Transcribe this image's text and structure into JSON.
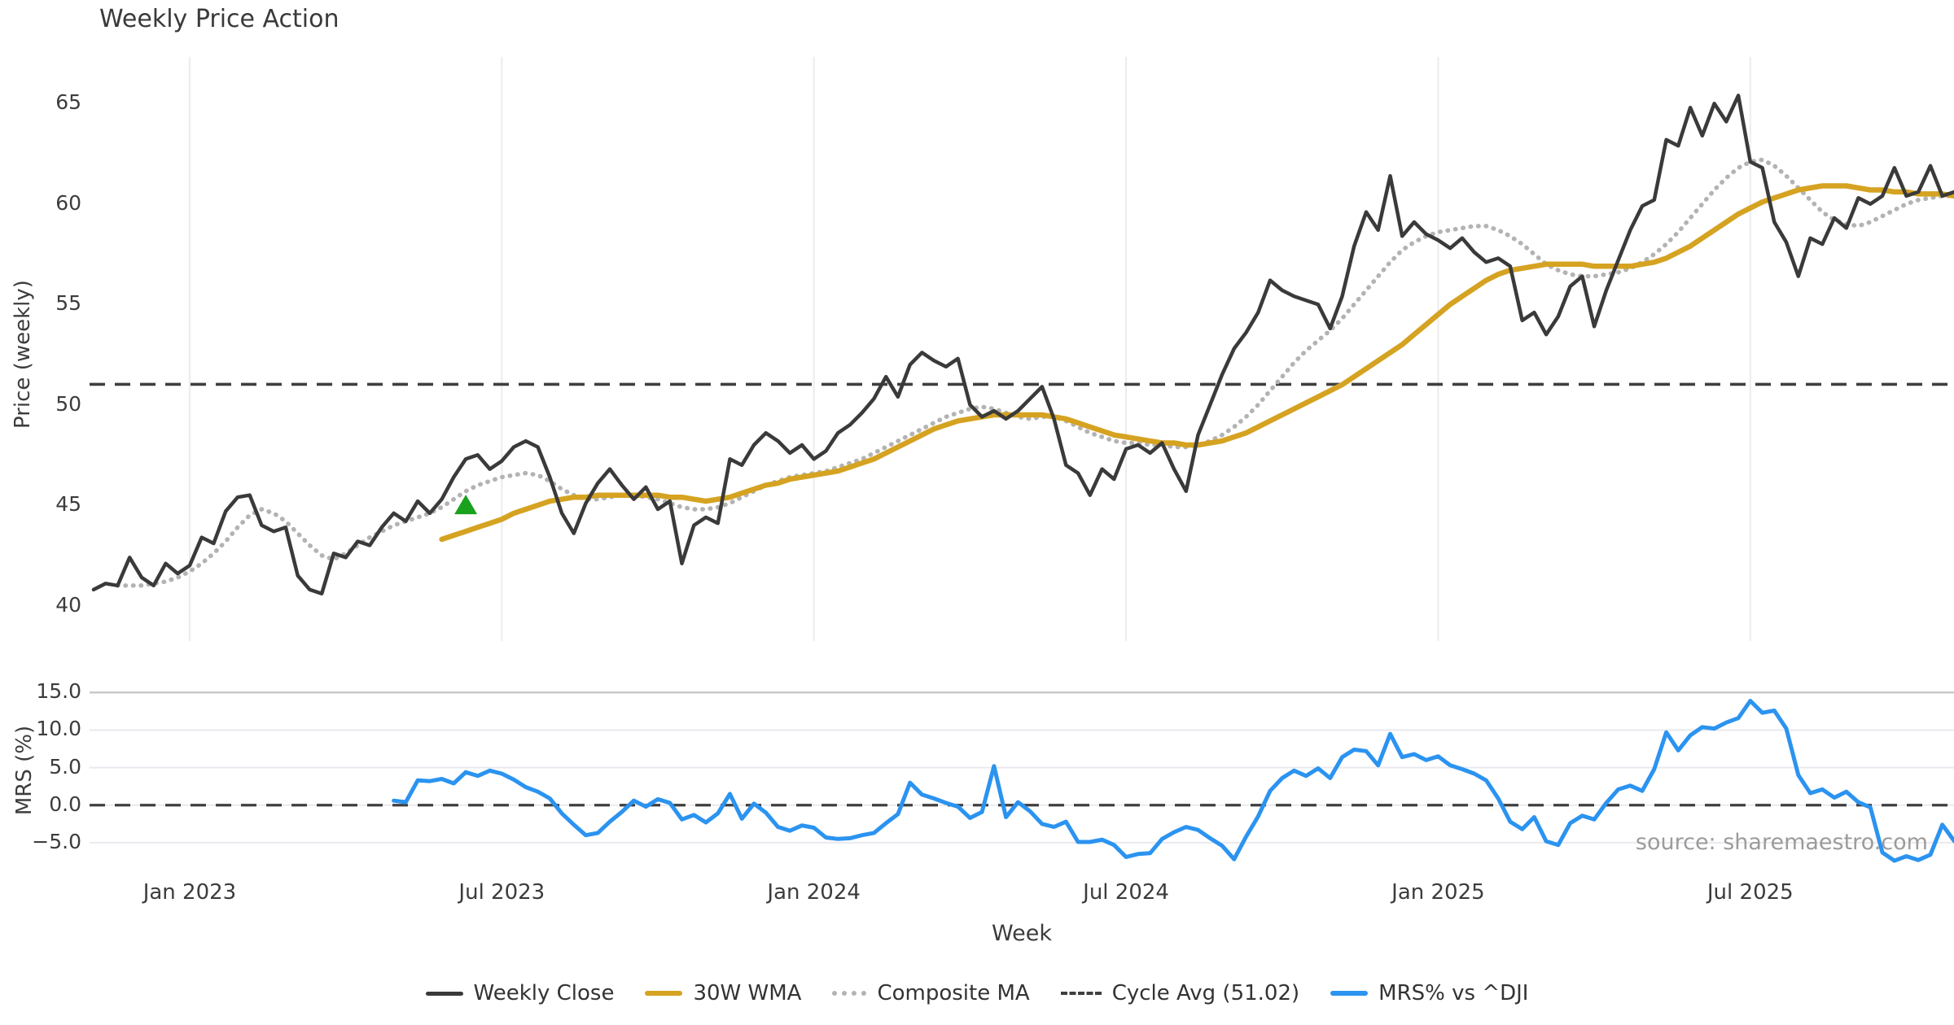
{
  "title": "Weekly Price Action",
  "xlabel": "Week",
  "source_note": "source: sharemaestro.com",
  "colors": {
    "weekly_close": "#3a3a3a",
    "wma30": "#d5a321",
    "composite_ma": "#b3b3b3",
    "cycle_avg_dash": "#3f3f3f",
    "mrs_line": "#2b93f0",
    "marker_green": "#18a21d",
    "grid_vertical": "#ececec",
    "grid_horizontal": "#e9e9ef",
    "grid_horizontal_top": "#c9c9c9",
    "background": "#ffffff"
  },
  "legend": [
    {
      "label": "Weekly Close",
      "color": "#3a3a3a",
      "style": "solid"
    },
    {
      "label": "30W WMA",
      "color": "#d5a321",
      "style": "solid-thick"
    },
    {
      "label": "Composite MA",
      "color": "#b3b3b3",
      "style": "dotted"
    },
    {
      "label": "Cycle Avg (51.02)",
      "color": "#3f3f3f",
      "style": "dashed"
    },
    {
      "label": "MRS% vs ^DJI",
      "color": "#2b93f0",
      "style": "solid-thick"
    }
  ],
  "chart_data": {
    "type": "line",
    "title": "Weekly Price Action",
    "xlabel": "Week",
    "start_date": "2022-11-07",
    "interval_days": 7,
    "n_points": 156,
    "x_ticks": [
      {
        "label": "Jan 2023",
        "index": 8
      },
      {
        "label": "Jul 2023",
        "index": 34
      },
      {
        "label": "Jan 2024",
        "index": 60
      },
      {
        "label": "Jul 2024",
        "index": 86
      },
      {
        "label": "Jan 2025",
        "index": 112
      },
      {
        "label": "Jul 2025",
        "index": 138
      }
    ],
    "panels": [
      {
        "id": "price",
        "ylabel": "Price (weekly)",
        "ylim": [
          38.4,
          67.2
        ],
        "grid": "vertical-only",
        "yticks": [
          {
            "label": "65",
            "value": 65
          },
          {
            "label": "60",
            "value": 60
          },
          {
            "label": "55",
            "value": 55
          },
          {
            "label": "50",
            "value": 50
          },
          {
            "label": "45",
            "value": 45
          },
          {
            "label": "40",
            "value": 40
          }
        ],
        "ref_line": {
          "name": "Cycle Avg (51.02)",
          "value": 51.02,
          "style": "dashed",
          "color": "#3f3f3f"
        },
        "markers": [
          {
            "index": 31,
            "value": 45.0,
            "shape": "triangle-up",
            "color": "#18a21d"
          }
        ],
        "series": [
          {
            "name": "Weekly Close",
            "color": "#3a3a3a",
            "style": "solid",
            "width": 4.5,
            "values": [
              40.8,
              41.1,
              41.0,
              42.4,
              41.4,
              41.0,
              42.1,
              41.6,
              42.0,
              43.4,
              43.1,
              44.7,
              45.4,
              45.5,
              44.0,
              43.7,
              43.9,
              41.5,
              40.8,
              40.6,
              42.6,
              42.4,
              43.2,
              43.0,
              43.9,
              44.6,
              44.2,
              45.2,
              44.6,
              45.3,
              46.4,
              47.3,
              47.5,
              46.8,
              47.2,
              47.9,
              48.2,
              47.9,
              46.4,
              44.6,
              43.6,
              45.1,
              46.1,
              46.8,
              46.0,
              45.3,
              45.9,
              44.8,
              45.2,
              42.1,
              44.0,
              44.4,
              44.1,
              47.3,
              47.0,
              48.0,
              48.6,
              48.2,
              47.6,
              48.0,
              47.3,
              47.7,
              48.6,
              49.0,
              49.6,
              50.3,
              51.4,
              50.4,
              52.0,
              52.6,
              52.2,
              51.9,
              52.3,
              50.0,
              49.4,
              49.7,
              49.3,
              49.7,
              50.3,
              50.9,
              49.3,
              47.0,
              46.6,
              45.5,
              46.8,
              46.3,
              47.8,
              48.0,
              47.6,
              48.1,
              46.8,
              45.7,
              48.5,
              50.0,
              51.5,
              52.8,
              53.6,
              54.6,
              56.2,
              55.7,
              55.4,
              55.2,
              55.0,
              53.8,
              55.4,
              57.9,
              59.6,
              58.7,
              61.4,
              58.4,
              59.1,
              58.5,
              58.2,
              57.8,
              58.3,
              57.6,
              57.1,
              57.3,
              56.9,
              54.2,
              54.6,
              53.5,
              54.4,
              55.9,
              56.4,
              53.9,
              55.7,
              57.2,
              58.7,
              59.9,
              60.2,
              63.2,
              62.9,
              64.8,
              63.4,
              65.0,
              64.1,
              65.4,
              62.1,
              61.8,
              59.1,
              58.1,
              56.4,
              58.3,
              58.0,
              59.3,
              58.8,
              60.3,
              60.0,
              60.4,
              61.8,
              60.4,
              60.6,
              61.9,
              60.4,
              60.6
            ]
          },
          {
            "name": "30W WMA",
            "color": "#d5a321",
            "style": "solid",
            "width": 6.5,
            "values": [
              null,
              null,
              null,
              null,
              null,
              null,
              null,
              null,
              null,
              null,
              null,
              null,
              null,
              null,
              null,
              null,
              null,
              null,
              null,
              null,
              null,
              null,
              null,
              null,
              null,
              null,
              null,
              null,
              null,
              43.3,
              43.5,
              43.7,
              43.9,
              44.1,
              44.3,
              44.6,
              44.8,
              45.0,
              45.2,
              45.3,
              45.4,
              45.4,
              45.5,
              45.5,
              45.5,
              45.5,
              45.5,
              45.5,
              45.4,
              45.4,
              45.3,
              45.2,
              45.3,
              45.4,
              45.6,
              45.8,
              46.0,
              46.1,
              46.3,
              46.4,
              46.5,
              46.6,
              46.7,
              46.9,
              47.1,
              47.3,
              47.6,
              47.9,
              48.2,
              48.5,
              48.8,
              49.0,
              49.2,
              49.3,
              49.4,
              49.5,
              49.5,
              49.5,
              49.5,
              49.5,
              49.4,
              49.3,
              49.1,
              48.9,
              48.7,
              48.5,
              48.4,
              48.3,
              48.2,
              48.1,
              48.1,
              48.0,
              48.0,
              48.1,
              48.2,
              48.4,
              48.6,
              48.9,
              49.2,
              49.5,
              49.8,
              50.1,
              50.4,
              50.7,
              51.0,
              51.4,
              51.8,
              52.2,
              52.6,
              53.0,
              53.5,
              54.0,
              54.5,
              55.0,
              55.4,
              55.8,
              56.2,
              56.5,
              56.7,
              56.8,
              56.9,
              57.0,
              57.0,
              57.0,
              57.0,
              56.9,
              56.9,
              56.9,
              56.9,
              57.0,
              57.1,
              57.3,
              57.6,
              57.9,
              58.3,
              58.7,
              59.1,
              59.5,
              59.8,
              60.1,
              60.3,
              60.5,
              60.7,
              60.8,
              60.9,
              60.9,
              60.9,
              60.8,
              60.7,
              60.7,
              60.6,
              60.6,
              60.5,
              60.5,
              60.5,
              60.4
            ]
          },
          {
            "name": "Composite MA",
            "color": "#b3b3b3",
            "style": "dotted",
            "width": 4,
            "values": [
              null,
              null,
              41.0,
              41.0,
              41.0,
              41.1,
              41.2,
              41.4,
              41.7,
              42.1,
              42.6,
              43.2,
              43.9,
              44.5,
              44.8,
              44.6,
              44.2,
              43.6,
              43.0,
              42.5,
              42.3,
              42.6,
              43.0,
              43.4,
              43.7,
              44.0,
              44.2,
              44.4,
              44.6,
              44.9,
              45.3,
              45.7,
              46.0,
              46.2,
              46.4,
              46.5,
              46.6,
              46.5,
              46.2,
              45.8,
              45.5,
              45.3,
              45.3,
              45.4,
              45.5,
              45.5,
              45.4,
              45.3,
              45.1,
              44.9,
              44.8,
              44.8,
              44.9,
              45.1,
              45.4,
              45.7,
              46.0,
              46.2,
              46.4,
              46.5,
              46.6,
              46.7,
              46.9,
              47.1,
              47.3,
              47.6,
              47.9,
              48.2,
              48.5,
              48.8,
              49.1,
              49.4,
              49.6,
              49.8,
              49.9,
              49.8,
              49.6,
              49.4,
              49.3,
              49.4,
              49.4,
              49.2,
              48.9,
              48.6,
              48.4,
              48.2,
              48.1,
              48.1,
              48.0,
              48.0,
              47.9,
              47.9,
              48.0,
              48.2,
              48.5,
              48.9,
              49.4,
              50.0,
              50.7,
              51.4,
              52.1,
              52.7,
              53.2,
              53.7,
              54.3,
              55.0,
              55.7,
              56.4,
              57.1,
              57.7,
              58.1,
              58.4,
              58.6,
              58.7,
              58.8,
              58.9,
              58.9,
              58.7,
              58.4,
              58.0,
              57.5,
              57.0,
              56.7,
              56.5,
              56.4,
              56.4,
              56.5,
              56.6,
              56.8,
              57.1,
              57.5,
              58.0,
              58.6,
              59.3,
              60.0,
              60.7,
              61.3,
              61.8,
              62.1,
              62.2,
              61.9,
              61.4,
              60.8,
              60.2,
              59.6,
              59.2,
              59.0,
              58.9,
              59.1,
              59.4,
              59.7,
              60.0,
              60.2,
              60.3,
              60.4,
              60.4
            ]
          }
        ]
      },
      {
        "id": "mrs",
        "ylabel": "MRS (%)",
        "ylim": [
          -8.8,
          17.2
        ],
        "grid": "horizontal-only",
        "yticks": [
          {
            "label": "15.0",
            "value": 15
          },
          {
            "label": "10.0",
            "value": 10
          },
          {
            "label": "5.0",
            "value": 5
          },
          {
            "label": "0.0",
            "value": 0
          },
          {
            "label": "−5.0",
            "value": -5
          }
        ],
        "ref_line": {
          "name": "zero",
          "value": 0.0,
          "style": "dashed",
          "color": "#3f3f3f"
        },
        "series": [
          {
            "name": "MRS% vs ^DJI",
            "color": "#2b93f0",
            "style": "solid",
            "width": 5,
            "values": [
              null,
              null,
              null,
              null,
              null,
              null,
              null,
              null,
              null,
              null,
              null,
              null,
              null,
              null,
              null,
              null,
              null,
              null,
              null,
              null,
              null,
              null,
              null,
              null,
              null,
              0.6,
              0.4,
              3.3,
              3.2,
              3.5,
              2.9,
              4.4,
              3.9,
              4.6,
              4.2,
              3.4,
              2.4,
              1.8,
              0.9,
              -1.1,
              -2.6,
              -4.0,
              -3.7,
              -2.2,
              -0.9,
              0.6,
              -0.2,
              0.8,
              0.3,
              -1.9,
              -1.3,
              -2.3,
              -1.1,
              1.5,
              -1.8,
              0.2,
              -1.0,
              -2.9,
              -3.4,
              -2.7,
              -3.0,
              -4.3,
              -4.5,
              -4.4,
              -4.0,
              -3.7,
              -2.4,
              -1.2,
              3.0,
              1.4,
              0.9,
              0.3,
              -0.2,
              -1.7,
              -0.9,
              5.2,
              -1.6,
              0.4,
              -0.8,
              -2.5,
              -2.9,
              -2.2,
              -4.9,
              -4.9,
              -4.6,
              -5.3,
              -6.9,
              -6.5,
              -6.4,
              -4.5,
              -3.6,
              -2.9,
              -3.3,
              -4.4,
              -5.4,
              -7.2,
              -4.2,
              -1.5,
              1.9,
              3.6,
              4.6,
              3.9,
              4.9,
              3.6,
              6.4,
              7.4,
              7.2,
              5.3,
              9.5,
              6.4,
              6.8,
              6.0,
              6.5,
              5.3,
              4.8,
              4.2,
              3.3,
              0.9,
              -2.2,
              -3.2,
              -1.6,
              -4.8,
              -5.3,
              -2.4,
              -1.4,
              -1.9,
              0.3,
              2.1,
              2.6,
              1.9,
              4.8,
              9.7,
              7.3,
              9.3,
              10.4,
              10.2,
              11.0,
              11.6,
              13.9,
              12.3,
              12.6,
              10.2,
              4.0,
              1.6,
              2.1,
              1.0,
              1.8,
              0.4,
              -0.3,
              -6.3,
              -7.4,
              -6.8,
              -7.3,
              -6.6,
              -2.6,
              -4.8
            ]
          }
        ]
      }
    ],
    "legend_position": "bottom-center",
    "annotations": [
      {
        "text": "source: sharemaestro.com",
        "position": "bottom-right"
      }
    ]
  }
}
